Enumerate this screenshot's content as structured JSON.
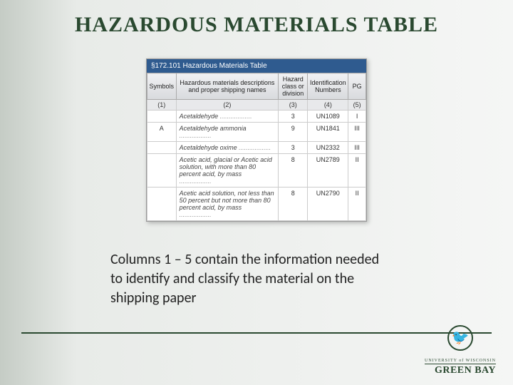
{
  "title": "HAZARDOUS MATERIALS TABLE",
  "tableBar": "§172.101 Hazardous Materials Table",
  "headers": {
    "c1": "Symbols",
    "c2": "Hazardous materials descriptions and proper shipping names",
    "c3": "Hazard class or division",
    "c4": "Identification Numbers",
    "c5": "PG"
  },
  "numrow": {
    "c1": "(1)",
    "c2": "(2)",
    "c3": "(3)",
    "c4": "(4)",
    "c5": "(5)"
  },
  "rows": [
    {
      "sym": "",
      "desc": "Acetaldehyde",
      "hc": "3",
      "id": "UN1089",
      "pg": "I"
    },
    {
      "sym": "A",
      "desc": "Acetaldehyde ammonia",
      "hc": "9",
      "id": "UN1841",
      "pg": "III"
    },
    {
      "sym": "",
      "desc": "Acetaldehyde oxime",
      "hc": "3",
      "id": "UN2332",
      "pg": "III"
    },
    {
      "sym": "",
      "desc": "Acetic acid, glacial or Acetic acid solution, with more than 80 percent acid, by mass",
      "hc": "8",
      "id": "UN2789",
      "pg": "II"
    },
    {
      "sym": "",
      "desc": "Acetic acid solution, not less than 50 percent but not more than 80 percent acid, by mass",
      "hc": "8",
      "id": "UN2790",
      "pg": "II"
    }
  ],
  "caption": "Columns 1 – 5 contain the information needed to identify and classify the material on the shipping paper",
  "logo": {
    "line1": "UNIVERSITY of WISCONSIN",
    "line2": "GREEN BAY"
  },
  "colors": {
    "brand": "#2a4930",
    "barBlue": "#2f5b8f",
    "headerGradTop": "#f0f1f3",
    "headerGradBot": "#d8dadd"
  }
}
